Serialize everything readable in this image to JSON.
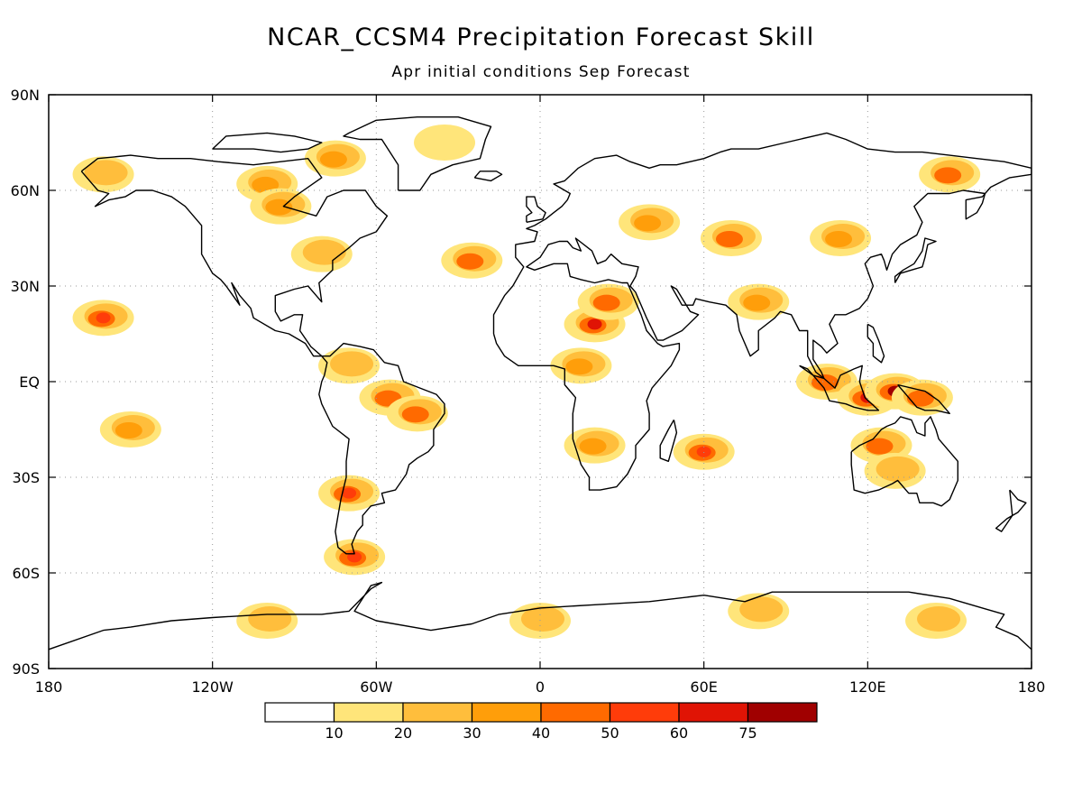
{
  "title": "NCAR_CCSM4 Precipitation Forecast Skill",
  "subtitle": "Apr initial conditions  Sep Forecast",
  "map": {
    "projection": "equirectangular",
    "lon_range": [
      -180,
      180
    ],
    "lat_range": [
      -90,
      90
    ],
    "grid": "dotted",
    "lat_ticks": [
      {
        "lat": 90,
        "label": "90N"
      },
      {
        "lat": 60,
        "label": "60N"
      },
      {
        "lat": 30,
        "label": "30N"
      },
      {
        "lat": 0,
        "label": "EQ"
      },
      {
        "lat": -30,
        "label": "30S"
      },
      {
        "lat": -60,
        "label": "60S"
      },
      {
        "lat": -90,
        "label": "90S"
      }
    ],
    "lon_ticks": [
      {
        "lon": -180,
        "label": "180"
      },
      {
        "lon": -120,
        "label": "120W"
      },
      {
        "lon": -60,
        "label": "60W"
      },
      {
        "lon": 0,
        "label": "0"
      },
      {
        "lon": 60,
        "label": "60E"
      },
      {
        "lon": 120,
        "label": "120E"
      },
      {
        "lon": 180,
        "label": "180"
      }
    ]
  },
  "legend": {
    "colors": [
      "#ffffff",
      "#ffe57a",
      "#ffbe3c",
      "#ff9e0a",
      "#ff6a00",
      "#ff3c0a",
      "#e01405",
      "#a00000"
    ],
    "labels": [
      "10",
      "20",
      "30",
      "40",
      "50",
      "60",
      "75"
    ]
  },
  "colors": {
    "land_outline": "#000000",
    "grid": "#9a9a9a"
  },
  "skill_regions": [
    {
      "lon": -160,
      "lat": 65,
      "value": 25
    },
    {
      "lon": -100,
      "lat": 62,
      "value": 30
    },
    {
      "lon": -75,
      "lat": 70,
      "value": 35
    },
    {
      "lon": -95,
      "lat": 55,
      "value": 30
    },
    {
      "lon": -35,
      "lat": 75,
      "value": 15
    },
    {
      "lon": -80,
      "lat": 40,
      "value": 20
    },
    {
      "lon": -160,
      "lat": 20,
      "value": 50
    },
    {
      "lon": -150,
      "lat": -15,
      "value": 30
    },
    {
      "lon": -55,
      "lat": -5,
      "value": 40
    },
    {
      "lon": -45,
      "lat": -10,
      "value": 45
    },
    {
      "lon": -70,
      "lat": 5,
      "value": 25
    },
    {
      "lon": -70,
      "lat": -35,
      "value": 50
    },
    {
      "lon": -68,
      "lat": -55,
      "value": 50
    },
    {
      "lon": -25,
      "lat": 38,
      "value": 40
    },
    {
      "lon": 20,
      "lat": 18,
      "value": 60
    },
    {
      "lon": 25,
      "lat": 25,
      "value": 45
    },
    {
      "lon": 15,
      "lat": 5,
      "value": 30
    },
    {
      "lon": 20,
      "lat": -20,
      "value": 30
    },
    {
      "lon": 40,
      "lat": 50,
      "value": 35
    },
    {
      "lon": 70,
      "lat": 45,
      "value": 40
    },
    {
      "lon": 110,
      "lat": 45,
      "value": 35
    },
    {
      "lon": 150,
      "lat": 65,
      "value": 40
    },
    {
      "lon": 80,
      "lat": 25,
      "value": 35
    },
    {
      "lon": 105,
      "lat": 0,
      "value": 40
    },
    {
      "lon": 120,
      "lat": -5,
      "value": 60
    },
    {
      "lon": 130,
      "lat": -3,
      "value": 75
    },
    {
      "lon": 140,
      "lat": -5,
      "value": 45
    },
    {
      "lon": 125,
      "lat": -20,
      "value": 40
    },
    {
      "lon": 60,
      "lat": -22,
      "value": 50
    },
    {
      "lon": 130,
      "lat": -28,
      "value": 25
    },
    {
      "lon": -100,
      "lat": -75,
      "value": 25
    },
    {
      "lon": 0,
      "lat": -75,
      "value": 20
    },
    {
      "lon": 80,
      "lat": -72,
      "value": 25
    },
    {
      "lon": 145,
      "lat": -75,
      "value": 20
    }
  ]
}
